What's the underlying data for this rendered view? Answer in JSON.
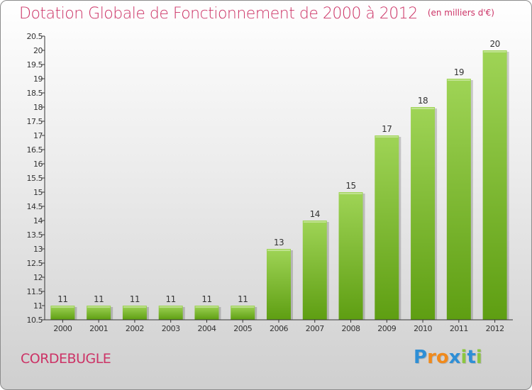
{
  "title": "Dotation Globale de Fonctionnement de 2000 à 2012",
  "unit": "(en milliers d'€)",
  "commune": "CORDEBUGLE",
  "brand": {
    "letters": [
      "P",
      "r",
      "o",
      "x",
      "i",
      "t",
      "i"
    ],
    "colors": [
      "#2e8fd6",
      "#f08a1c",
      "#f08a1c",
      "#2e8fd6",
      "#8cc63f",
      "#2e8fd6",
      "#8cc63f"
    ]
  },
  "colors": {
    "bar_top": "#9fd456",
    "bar_bottom": "#5e9e12",
    "title": "#cc3366",
    "axis": "#333333"
  },
  "chart_data": {
    "type": "bar",
    "categories": [
      "2000",
      "2001",
      "2002",
      "2003",
      "2004",
      "2005",
      "2006",
      "2007",
      "2008",
      "2009",
      "2010",
      "2011",
      "2012"
    ],
    "values": [
      11,
      11,
      11,
      11,
      11,
      11,
      13,
      14,
      15,
      17,
      18,
      19,
      20
    ],
    "data_labels": [
      "11",
      "11",
      "11",
      "11",
      "11",
      "11",
      "13",
      "14",
      "15",
      "17",
      "18",
      "19",
      "20"
    ],
    "ylim": [
      10.5,
      20.5
    ],
    "yticks": [
      "10.5",
      "11",
      "11.5",
      "12",
      "12.5",
      "13",
      "13.5",
      "14",
      "14.5",
      "15",
      "15.5",
      "16",
      "16.5",
      "17",
      "17.5",
      "18",
      "18.5",
      "19",
      "19.5",
      "20",
      "20.5"
    ],
    "grid": false,
    "xlabel": "",
    "ylabel": ""
  }
}
